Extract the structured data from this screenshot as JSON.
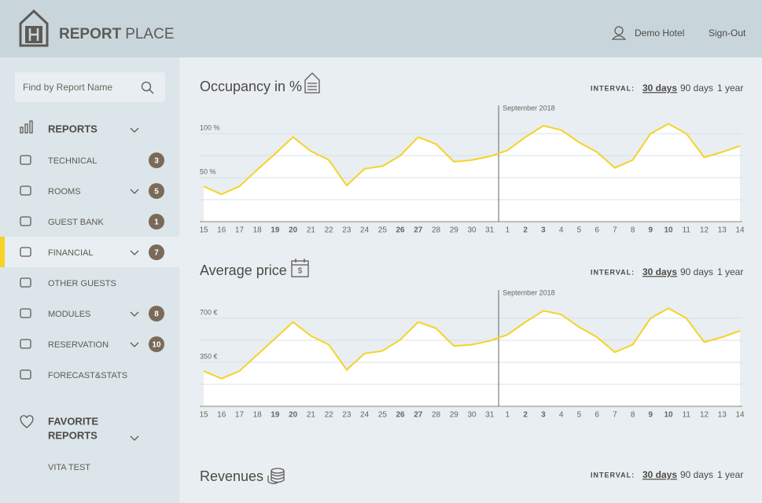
{
  "header": {
    "brand_bold": "REPORT",
    "brand_light": "PLACE",
    "user": "Demo Hotel",
    "signout": "Sign-Out"
  },
  "sidebar": {
    "search_placeholder": "Find by Report Name",
    "reports_title": "REPORTS",
    "items": [
      {
        "label": "TECHNICAL",
        "badge": 3
      },
      {
        "label": "ROOMS",
        "badge": 5,
        "expandable": true
      },
      {
        "label": "GUEST BANK",
        "badge": 1
      },
      {
        "label": "FINANCIAL",
        "badge": 7,
        "expandable": true,
        "active": true
      },
      {
        "label": "OTHER GUESTS"
      },
      {
        "label": "MODULES",
        "badge": 8,
        "expandable": true
      },
      {
        "label": "RESERVATION",
        "badge": 10,
        "expandable": true
      },
      {
        "label": "FORECAST&STATS"
      }
    ],
    "favorites_title_1": "FAVORITE",
    "favorites_title_2": "REPORTS",
    "favorites": [
      "VITA TEST"
    ]
  },
  "chart_data": [
    {
      "type": "line",
      "title": "Occupancy in %",
      "interval_label": "INTERVAL:",
      "intervals": [
        "30 days",
        "90 days",
        "1 year"
      ],
      "selected_interval": 0,
      "annotation": "September 2018",
      "categories": [
        "15",
        "16",
        "17",
        "18",
        "19",
        "20",
        "21",
        "22",
        "23",
        "24",
        "25",
        "26",
        "27",
        "28",
        "29",
        "30",
        "31",
        "1",
        "2",
        "3",
        "4",
        "5",
        "6",
        "7",
        "8",
        "9",
        "10",
        "11",
        "12",
        "13",
        "14"
      ],
      "weekend": [
        false,
        false,
        false,
        false,
        true,
        true,
        false,
        false,
        false,
        false,
        false,
        true,
        true,
        false,
        false,
        false,
        false,
        false,
        true,
        true,
        false,
        false,
        false,
        false,
        false,
        true,
        true,
        false,
        false,
        false,
        false
      ],
      "values": [
        40,
        31,
        40,
        59,
        77,
        96,
        80,
        70,
        41,
        60,
        63,
        75,
        96,
        88,
        68,
        70,
        74,
        81,
        96,
        109,
        104,
        90,
        79,
        61,
        70,
        100,
        111,
        100,
        73,
        79,
        86
      ],
      "color": "#f5d327",
      "ylim": [
        0,
        115
      ],
      "yticks": [
        {
          "value": 50,
          "label": "50 %"
        },
        {
          "value": 100,
          "label": "100 %"
        }
      ],
      "minor_yticks": [
        25,
        75
      ],
      "grid": true
    },
    {
      "type": "line",
      "title": "Average price",
      "interval_label": "INTERVAL:",
      "intervals": [
        "30 days",
        "90 days",
        "1 year"
      ],
      "selected_interval": 0,
      "annotation": "September 2018",
      "categories": [
        "15",
        "16",
        "17",
        "18",
        "19",
        "20",
        "21",
        "22",
        "23",
        "24",
        "25",
        "26",
        "27",
        "28",
        "29",
        "30",
        "31",
        "1",
        "2",
        "3",
        "4",
        "5",
        "6",
        "7",
        "8",
        "9",
        "10",
        "11",
        "12",
        "13",
        "14"
      ],
      "weekend": [
        false,
        false,
        false,
        false,
        true,
        true,
        false,
        false,
        false,
        false,
        false,
        true,
        true,
        false,
        false,
        false,
        false,
        false,
        true,
        true,
        false,
        false,
        false,
        false,
        false,
        true,
        true,
        false,
        false,
        false,
        false
      ],
      "values": [
        280,
        220,
        280,
        410,
        540,
        670,
        560,
        490,
        290,
        420,
        440,
        530,
        670,
        620,
        480,
        490,
        520,
        570,
        670,
        760,
        730,
        630,
        550,
        430,
        490,
        700,
        780,
        700,
        510,
        550,
        600
      ],
      "color": "#f5d327",
      "ylim": [
        0,
        805
      ],
      "yticks": [
        {
          "value": 350,
          "label": "350 €"
        },
        {
          "value": 700,
          "label": "700 €"
        }
      ],
      "minor_yticks": [
        175,
        525
      ],
      "grid": true
    }
  ],
  "revenues": {
    "title": "Revenues",
    "interval_label": "INTERVAL:",
    "intervals": [
      "30 days",
      "90 days",
      "1 year"
    ],
    "selected_interval": 0
  }
}
